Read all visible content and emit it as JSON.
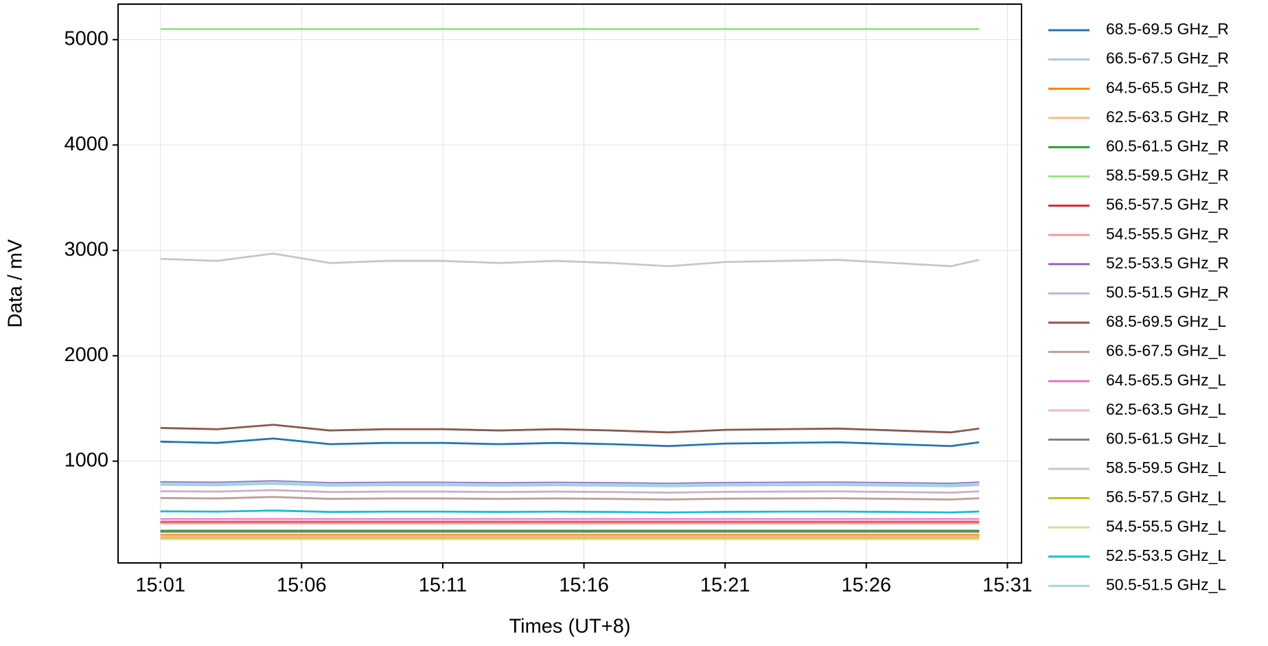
{
  "chart_data": {
    "type": "line",
    "xlabel": "Times (UT+8)",
    "ylabel": "Data / mV",
    "x": [
      "15:01",
      "15:03",
      "15:05",
      "15:07",
      "15:09",
      "15:11",
      "15:13",
      "15:15",
      "15:17",
      "15:19",
      "15:21",
      "15:23",
      "15:25",
      "15:27",
      "15:29",
      "15:30"
    ],
    "xlim": [
      "14:59:30",
      "15:31:30"
    ],
    "xticks": [
      "15:01",
      "15:06",
      "15:11",
      "15:16",
      "15:21",
      "15:26",
      "15:31"
    ],
    "ylim": [
      34,
      5337
    ],
    "yticks": [
      1000,
      2000,
      3000,
      4000,
      5000
    ],
    "grid": true,
    "legend": "outside-right",
    "series": [
      {
        "name": "68.5-69.5 GHz_R",
        "color": "#1f77b4",
        "values": [
          1185,
          1173,
          1215,
          1161,
          1173,
          1173,
          1161,
          1173,
          1161,
          1143,
          1167,
          1173,
          1179,
          1161,
          1143,
          1179
        ]
      },
      {
        "name": "66.5-67.5 GHz_R",
        "color": "#aec7e8",
        "values": [
          775,
          771,
          785,
          767,
          771,
          771,
          767,
          771,
          767,
          761,
          769,
          771,
          773,
          767,
          761,
          773
        ]
      },
      {
        "name": "64.5-65.5 GHz_R",
        "color": "#ff7f0e",
        "values": [
          300,
          300,
          300,
          300,
          300,
          300,
          300,
          300,
          300,
          300,
          300,
          300,
          300,
          300,
          300,
          300
        ]
      },
      {
        "name": "62.5-63.5 GHz_R",
        "color": "#ffbb78",
        "values": [
          290,
          290,
          290,
          290,
          290,
          290,
          290,
          290,
          290,
          290,
          290,
          290,
          290,
          290,
          290,
          290
        ]
      },
      {
        "name": "60.5-61.5 GHz_R",
        "color": "#2ca02c",
        "values": [
          340,
          340,
          340,
          340,
          340,
          340,
          340,
          340,
          340,
          340,
          340,
          340,
          340,
          340,
          340,
          340
        ]
      },
      {
        "name": "58.5-59.5 GHz_R",
        "color": "#98df8a",
        "values": [
          5100,
          5100,
          5100,
          5100,
          5100,
          5100,
          5100,
          5100,
          5100,
          5100,
          5100,
          5100,
          5100,
          5100,
          5100,
          5100
        ]
      },
      {
        "name": "56.5-57.5 GHz_R",
        "color": "#d62728",
        "values": [
          420,
          420,
          420,
          420,
          420,
          420,
          420,
          420,
          420,
          420,
          420,
          420,
          420,
          420,
          420,
          420
        ]
      },
      {
        "name": "54.5-55.5 GHz_R",
        "color": "#ff9896",
        "values": [
          410,
          410,
          410,
          410,
          410,
          410,
          410,
          410,
          410,
          410,
          410,
          410,
          410,
          410,
          410,
          410
        ]
      },
      {
        "name": "52.5-53.5 GHz_R",
        "color": "#9467bd",
        "values": [
          800,
          796,
          810,
          792,
          796,
          796,
          792,
          796,
          792,
          786,
          794,
          796,
          798,
          792,
          786,
          798
        ]
      },
      {
        "name": "50.5-51.5 GHz_R",
        "color": "#c5b0d5",
        "values": [
          715,
          711,
          725,
          707,
          711,
          711,
          707,
          711,
          707,
          701,
          709,
          711,
          713,
          707,
          701,
          713
        ]
      },
      {
        "name": "68.5-69.5 GHz_L",
        "color": "#8c564b",
        "values": [
          1315,
          1303,
          1345,
          1291,
          1303,
          1303,
          1291,
          1303,
          1291,
          1273,
          1297,
          1303,
          1309,
          1291,
          1273,
          1309
        ]
      },
      {
        "name": "66.5-67.5 GHz_L",
        "color": "#c49c94",
        "values": [
          650,
          646,
          660,
          642,
          646,
          646,
          642,
          646,
          642,
          636,
          644,
          646,
          648,
          642,
          636,
          648
        ]
      },
      {
        "name": "64.5-65.5 GHz_L",
        "color": "#e377c2",
        "values": [
          450,
          450,
          450,
          450,
          450,
          450,
          450,
          450,
          450,
          450,
          450,
          450,
          450,
          450,
          450,
          450
        ]
      },
      {
        "name": "62.5-63.5 GHz_L",
        "color": "#f7b6d2",
        "values": [
          440,
          440,
          440,
          440,
          440,
          440,
          440,
          440,
          440,
          440,
          440,
          440,
          440,
          440,
          440,
          440
        ]
      },
      {
        "name": "60.5-61.5 GHz_L",
        "color": "#7f7f7f",
        "values": [
          330,
          330,
          330,
          330,
          330,
          330,
          330,
          330,
          330,
          330,
          330,
          330,
          330,
          330,
          330,
          330
        ]
      },
      {
        "name": "58.5-59.5 GHz_L",
        "color": "#c7c7c7",
        "values": [
          2920,
          2900,
          2970,
          2880,
          2900,
          2900,
          2880,
          2900,
          2880,
          2850,
          2890,
          2900,
          2910,
          2880,
          2850,
          2910
        ]
      },
      {
        "name": "56.5-57.5 GHz_L",
        "color": "#bcbd22",
        "values": [
          270,
          270,
          270,
          270,
          270,
          270,
          270,
          270,
          270,
          270,
          270,
          270,
          270,
          270,
          270,
          270
        ]
      },
      {
        "name": "54.5-55.5 GHz_L",
        "color": "#dbdb8d",
        "values": [
          260,
          260,
          260,
          260,
          260,
          260,
          260,
          260,
          260,
          260,
          260,
          260,
          260,
          260,
          260,
          260
        ]
      },
      {
        "name": "52.5-53.5 GHz_L",
        "color": "#17becf",
        "values": [
          524,
          521,
          531,
          518,
          521,
          521,
          518,
          521,
          518,
          513,
          519,
          521,
          522,
          518,
          513,
          522
        ]
      },
      {
        "name": "50.5-51.5 GHz_L",
        "color": "#9edae5",
        "values": [
          790,
          786,
          800,
          782,
          786,
          786,
          782,
          786,
          782,
          776,
          784,
          786,
          788,
          782,
          776,
          788
        ]
      }
    ]
  }
}
